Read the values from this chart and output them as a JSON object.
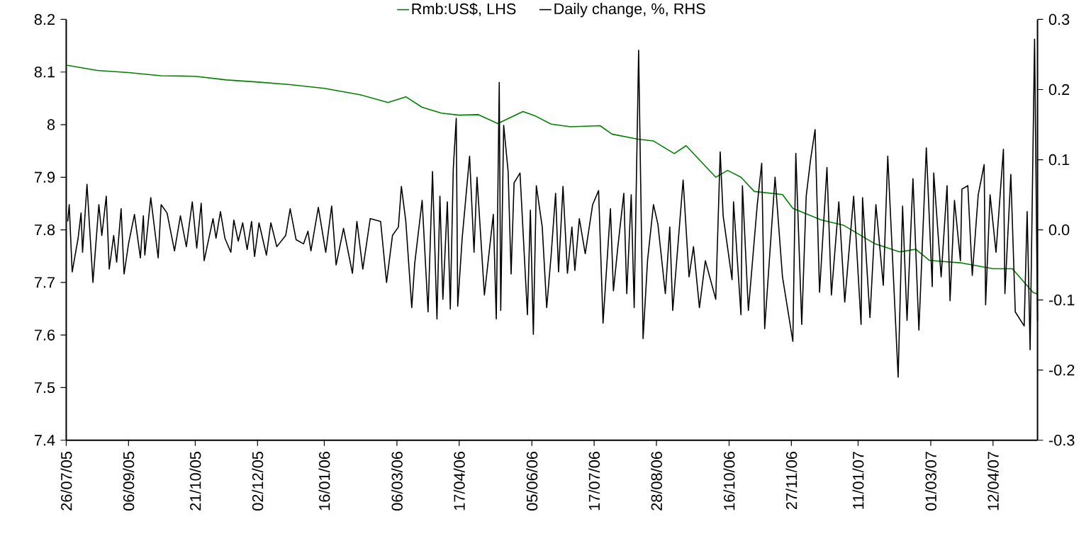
{
  "chart_data": {
    "type": "line",
    "legend": "top",
    "xlim": [
      "2005-07-26",
      "2007-05-12"
    ],
    "xticks": [
      {
        "value": "2005-07-26",
        "label": "26/07/05"
      },
      {
        "value": "2005-09-06",
        "label": "06/09/05"
      },
      {
        "value": "2005-10-21",
        "label": "21/10/05"
      },
      {
        "value": "2005-12-02",
        "label": "02/12/05"
      },
      {
        "value": "2006-01-16",
        "label": "16/01/06"
      },
      {
        "value": "2006-03-06",
        "label": "06/03/06"
      },
      {
        "value": "2006-04-17",
        "label": "17/04/06"
      },
      {
        "value": "2006-06-05",
        "label": "05/06/06"
      },
      {
        "value": "2006-07-17",
        "label": "17/07/06"
      },
      {
        "value": "2006-08-28",
        "label": "28/08/06"
      },
      {
        "value": "2006-10-16",
        "label": "16/10/06"
      },
      {
        "value": "2006-11-27",
        "label": "27/11/06"
      },
      {
        "value": "2007-01-11",
        "label": "11/01/07"
      },
      {
        "value": "2007-03-01",
        "label": "01/03/07"
      },
      {
        "value": "2007-04-12",
        "label": "12/04/07"
      }
    ],
    "ylim": [
      7.4,
      8.2
    ],
    "yticks": [
      7.4,
      7.5,
      7.6,
      7.7,
      7.8,
      7.9,
      8,
      8.1,
      8.2
    ],
    "y2lim": [
      -0.3,
      0.3
    ],
    "y2ticks": [
      -0.3,
      -0.2,
      -0.1,
      {
        "value": 0,
        "label": "0.0"
      },
      0.1,
      0.2,
      0.3
    ],
    "series": [
      {
        "name": "Rmb:US$, LHS",
        "color": "#008000",
        "x": [
          "2005-07-26",
          "2005-08-16",
          "2005-09-06",
          "2005-09-28",
          "2005-10-21",
          "2005-11-11",
          "2005-12-02",
          "2005-12-24",
          "2006-01-16",
          "2006-02-09",
          "2006-02-28",
          "2006-03-12",
          "2006-03-23",
          "2006-04-05",
          "2006-04-17",
          "2006-04-30",
          "2006-05-13",
          "2006-05-30",
          "2006-06-07",
          "2006-06-18",
          "2006-07-01",
          "2006-07-21",
          "2006-07-29",
          "2006-08-16",
          "2006-08-26",
          "2006-09-09",
          "2006-09-17",
          "2006-10-07",
          "2006-10-15",
          "2006-10-24",
          "2006-11-02",
          "2006-11-21",
          "2006-11-28",
          "2006-12-17",
          "2007-01-01",
          "2007-01-22",
          "2007-02-08",
          "2007-02-19",
          "2007-02-28",
          "2007-03-22",
          "2007-04-12",
          "2007-04-25",
          "2007-05-09",
          "2007-05-12"
        ],
        "values": [
          8.113,
          8.103,
          8.099,
          8.093,
          8.092,
          8.085,
          8.081,
          8.076,
          8.069,
          8.057,
          8.042,
          8.053,
          8.033,
          8.022,
          8.018,
          8.019,
          8.002,
          8.025,
          8.017,
          8.001,
          7.996,
          7.998,
          7.982,
          7.972,
          7.969,
          7.945,
          7.96,
          7.9,
          7.913,
          7.9,
          7.873,
          7.867,
          7.841,
          7.819,
          7.809,
          7.774,
          7.758,
          7.763,
          7.742,
          7.737,
          7.726,
          7.726,
          7.681,
          7.678
        ]
      },
      {
        "name": "Daily change, %, RHS",
        "color": "#000000",
        "axis": "y2",
        "x": [
          "2005-07-27",
          "2005-07-28",
          "2005-07-30",
          "2005-08-03",
          "2005-08-05",
          "2005-08-06",
          "2005-08-09",
          "2005-08-13",
          "2005-08-17",
          "2005-08-19",
          "2005-08-22",
          "2005-08-24",
          "2005-08-27",
          "2005-08-29",
          "2005-09-01",
          "2005-09-03",
          "2005-09-06",
          "2005-09-10",
          "2005-09-14",
          "2005-09-16",
          "2005-09-17",
          "2005-09-21",
          "2005-09-26",
          "2005-09-28",
          "2005-10-02",
          "2005-10-07",
          "2005-10-11",
          "2005-10-15",
          "2005-10-19",
          "2005-10-22",
          "2005-10-25",
          "2005-10-27",
          "2005-11-02",
          "2005-11-04",
          "2005-11-07",
          "2005-11-10",
          "2005-11-14",
          "2005-11-16",
          "2005-11-19",
          "2005-11-22",
          "2005-11-25",
          "2005-11-28",
          "2005-11-30",
          "2005-12-03",
          "2005-12-08",
          "2005-12-11",
          "2005-12-15",
          "2005-12-21",
          "2005-12-24",
          "2005-12-28",
          "2006-01-02",
          "2006-01-05",
          "2006-01-07",
          "2006-01-12",
          "2006-01-17",
          "2006-01-21",
          "2006-01-24",
          "2006-01-29",
          "2006-02-04",
          "2006-02-07",
          "2006-02-11",
          "2006-02-16",
          "2006-02-23",
          "2006-02-27",
          "2006-03-03",
          "2006-03-07",
          "2006-03-09",
          "2006-03-12",
          "2006-03-16",
          "2006-03-18",
          "2006-03-23",
          "2006-03-27",
          "2006-03-30",
          "2006-04-02",
          "2006-04-04",
          "2006-04-06",
          "2006-04-09",
          "2006-04-11",
          "2006-04-13",
          "2006-04-15",
          "2006-04-16",
          "2006-04-19",
          "2006-04-24",
          "2006-04-27",
          "2006-04-29",
          "2006-05-04",
          "2006-05-10",
          "2006-05-12",
          "2006-05-14",
          "2006-05-15",
          "2006-05-17",
          "2006-05-20",
          "2006-05-22",
          "2006-05-24",
          "2006-05-28",
          "2006-06-02",
          "2006-06-04",
          "2006-06-06",
          "2006-06-08",
          "2006-06-12",
          "2006-06-15",
          "2006-06-18",
          "2006-06-21",
          "2006-06-23",
          "2006-06-26",
          "2006-06-29",
          "2006-07-02",
          "2006-07-04",
          "2006-07-07",
          "2006-07-11",
          "2006-07-16",
          "2006-07-20",
          "2006-07-23",
          "2006-07-28",
          "2006-07-30",
          "2006-08-02",
          "2006-08-06",
          "2006-08-08",
          "2006-08-11",
          "2006-08-13",
          "2006-08-16",
          "2006-08-19",
          "2006-08-22",
          "2006-08-26",
          "2006-08-29",
          "2006-09-03",
          "2006-09-06",
          "2006-09-08",
          "2006-09-15",
          "2006-09-19",
          "2006-09-22",
          "2006-09-26",
          "2006-09-30",
          "2006-10-07",
          "2006-10-10",
          "2006-10-12",
          "2006-10-18",
          "2006-10-19",
          "2006-10-24",
          "2006-10-25",
          "2006-10-29",
          "2006-11-04",
          "2006-11-07",
          "2006-11-09",
          "2006-11-16",
          "2006-11-21",
          "2006-11-28",
          "2006-11-30",
          "2006-12-04",
          "2006-12-07",
          "2006-12-10",
          "2006-12-13",
          "2006-12-16",
          "2006-12-21",
          "2006-12-24",
          "2006-12-29",
          "2007-01-02",
          "2007-01-08",
          "2007-01-13",
          "2007-01-14",
          "2007-01-19",
          "2007-01-23",
          "2007-01-28",
          "2007-01-31",
          "2007-02-07",
          "2007-02-10",
          "2007-02-13",
          "2007-02-17",
          "2007-02-21",
          "2007-02-26",
          "2007-03-02",
          "2007-03-03",
          "2007-03-08",
          "2007-03-12",
          "2007-03-14",
          "2007-03-17",
          "2007-03-21",
          "2007-03-22",
          "2007-03-26",
          "2007-03-29",
          "2007-04-02",
          "2007-04-06",
          "2007-04-07",
          "2007-04-10",
          "2007-04-14",
          "2007-04-19",
          "2007-04-20",
          "2007-04-24",
          "2007-04-27",
          "2007-05-03",
          "2007-05-05",
          "2007-05-07",
          "2007-05-10",
          "2007-05-12"
        ],
        "values": [
          0.012,
          0.036,
          -0.06,
          -0.012,
          0.024,
          -0.032,
          0.065,
          -0.075,
          0.036,
          -0.008,
          0.048,
          -0.056,
          -0.008,
          -0.046,
          0.03,
          -0.063,
          -0.02,
          0.022,
          -0.04,
          0.02,
          -0.036,
          0.046,
          -0.04,
          0.036,
          0.024,
          -0.03,
          0.02,
          -0.024,
          0.04,
          -0.026,
          0.038,
          -0.044,
          0.016,
          -0.012,
          0.026,
          -0.012,
          -0.032,
          0.014,
          -0.016,
          0.01,
          -0.028,
          0.012,
          -0.038,
          0.01,
          -0.036,
          0.01,
          -0.024,
          -0.008,
          0.03,
          -0.014,
          -0.02,
          -0.002,
          -0.03,
          0.032,
          -0.032,
          0.034,
          -0.05,
          0.002,
          -0.062,
          0.012,
          -0.056,
          0.016,
          0.012,
          -0.075,
          -0.008,
          0.004,
          0.062,
          0.012,
          -0.111,
          -0.048,
          0.042,
          -0.117,
          0.083,
          -0.127,
          0.048,
          -0.099,
          0.04,
          -0.113,
          0.087,
          0.159,
          -0.109,
          -0.012,
          0.105,
          -0.032,
          0.075,
          -0.093,
          0.022,
          -0.127,
          0.21,
          -0.115,
          0.149,
          0.083,
          -0.063,
          0.067,
          0.081,
          -0.121,
          0.028,
          -0.149,
          0.063,
          0.004,
          -0.111,
          -0.036,
          0.052,
          -0.06,
          0.062,
          -0.062,
          0.004,
          -0.058,
          0.016,
          -0.034,
          0.036,
          0.056,
          -0.133,
          0.03,
          -0.087,
          -0.024,
          0.052,
          -0.091,
          0.05,
          -0.111,
          0.256,
          -0.155,
          -0.044,
          0.036,
          0.008,
          -0.091,
          0.004,
          -0.115,
          0.071,
          -0.067,
          -0.024,
          -0.111,
          -0.044,
          -0.099,
          0.111,
          0.02,
          -0.071,
          0.04,
          -0.121,
          0.063,
          -0.115,
          0.036,
          0.095,
          -0.141,
          0.075,
          -0.067,
          -0.159,
          0.109,
          -0.135,
          0.048,
          0.101,
          0.143,
          -0.089,
          0.089,
          -0.093,
          0.04,
          -0.103,
          0.048,
          -0.135,
          0.046,
          -0.125,
          0.036,
          -0.079,
          0.105,
          -0.21,
          0.034,
          -0.129,
          0.073,
          -0.143,
          0.117,
          -0.081,
          0.081,
          -0.067,
          0.063,
          -0.101,
          0.042,
          -0.044,
          0.058,
          0.063,
          -0.065,
          0.05,
          0.093,
          -0.107,
          0.05,
          -0.032,
          0.115,
          -0.091,
          0.079,
          -0.117,
          -0.137,
          0.026,
          -0.171,
          0.272,
          -0.13
        ]
      }
    ]
  }
}
